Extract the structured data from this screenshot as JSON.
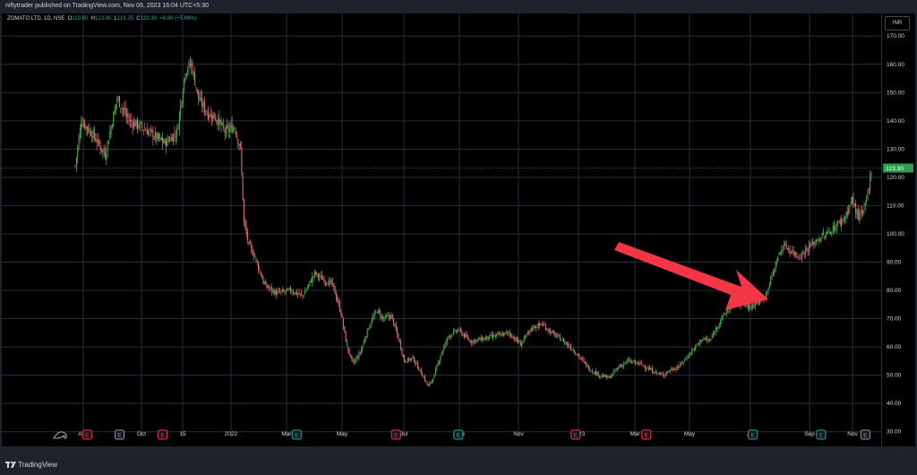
{
  "header": {
    "published_text": "niftytrader published on TradingView.com, Nov 06, 2023 16:04 UTC+5:30"
  },
  "legend": {
    "symbol": "ZOMATO LTD, 1D, NSE",
    "open_label": "O",
    "open": "119.60",
    "high_label": "H",
    "high": "123.90",
    "low_label": "L",
    "low": "118.25",
    "close_label": "C",
    "close": "123.30",
    "change": "+6.80 (+5.84%)"
  },
  "currency": "INR",
  "last_price_label": "123.30",
  "footer": {
    "brand": "TradingView"
  },
  "colors": {
    "up": "#26a69a",
    "down": "#ef5350",
    "candle_up": "#4caf50",
    "candle_down": "#e57373",
    "arrow": "#f23645",
    "last_price": "#2e9e4f"
  },
  "chart_data": {
    "type": "candlestick",
    "ylim": [
      28,
      178
    ],
    "y_ticks": [
      30,
      40,
      50,
      60,
      70,
      80,
      90,
      100,
      110,
      120,
      130,
      140,
      150,
      160,
      170
    ],
    "x_labels": [
      "Aug",
      "Oct",
      "15",
      "2022",
      "Mar",
      "May",
      "Jul",
      "Sep",
      "Nov",
      "2023",
      "Mar",
      "May",
      "Jul",
      "Sep",
      "Nov"
    ],
    "close_path": [
      [
        0,
        124
      ],
      [
        5,
        140
      ],
      [
        15,
        135
      ],
      [
        25,
        128
      ],
      [
        35,
        148
      ],
      [
        45,
        140
      ],
      [
        55,
        138
      ],
      [
        65,
        135
      ],
      [
        75,
        132
      ],
      [
        85,
        136
      ],
      [
        92,
        158
      ],
      [
        97,
        160
      ],
      [
        103,
        148
      ],
      [
        110,
        143
      ],
      [
        118,
        141
      ],
      [
        125,
        136
      ],
      [
        133,
        138
      ],
      [
        138,
        130
      ],
      [
        141,
        104
      ],
      [
        145,
        96
      ],
      [
        150,
        92
      ],
      [
        158,
        82
      ],
      [
        168,
        79
      ],
      [
        180,
        80
      ],
      [
        190,
        78
      ],
      [
        200,
        86
      ],
      [
        207,
        84
      ],
      [
        215,
        82
      ],
      [
        222,
        72
      ],
      [
        227,
        60
      ],
      [
        232,
        54
      ],
      [
        238,
        58
      ],
      [
        245,
        67
      ],
      [
        252,
        73
      ],
      [
        257,
        70
      ],
      [
        264,
        71
      ],
      [
        270,
        63
      ],
      [
        275,
        55
      ],
      [
        282,
        56
      ],
      [
        290,
        50
      ],
      [
        295,
        46
      ],
      [
        300,
        50
      ],
      [
        305,
        57
      ],
      [
        312,
        64
      ],
      [
        320,
        66
      ],
      [
        330,
        62
      ],
      [
        342,
        63
      ],
      [
        352,
        64
      ],
      [
        362,
        65
      ],
      [
        372,
        61
      ],
      [
        377,
        64
      ],
      [
        382,
        67
      ],
      [
        390,
        68
      ],
      [
        398,
        65
      ],
      [
        408,
        62
      ],
      [
        416,
        59
      ],
      [
        422,
        56
      ],
      [
        430,
        52
      ],
      [
        438,
        50
      ],
      [
        446,
        49
      ],
      [
        454,
        53
      ],
      [
        462,
        55
      ],
      [
        472,
        54
      ],
      [
        480,
        52
      ],
      [
        490,
        50
      ],
      [
        498,
        52
      ],
      [
        504,
        53
      ],
      [
        510,
        56
      ],
      [
        518,
        60
      ],
      [
        524,
        63
      ],
      [
        530,
        62
      ],
      [
        537,
        68
      ],
      [
        543,
        72
      ],
      [
        550,
        75
      ],
      [
        556,
        76
      ],
      [
        563,
        74
      ],
      [
        570,
        76
      ],
      [
        576,
        78
      ],
      [
        582,
        85
      ],
      [
        587,
        92
      ],
      [
        592,
        96
      ],
      [
        598,
        94
      ],
      [
        605,
        92
      ],
      [
        612,
        95
      ],
      [
        620,
        98
      ],
      [
        628,
        100
      ],
      [
        636,
        103
      ],
      [
        643,
        106
      ],
      [
        649,
        112
      ],
      [
        654,
        106
      ],
      [
        659,
        108
      ],
      [
        663,
        117
      ],
      [
        665,
        123.3
      ]
    ],
    "earnings_markers": [
      {
        "x": 10,
        "type": "E",
        "class": "earnings"
      },
      {
        "x": 37,
        "type": "E",
        "class": "other"
      },
      {
        "x": 73,
        "type": "E",
        "class": "earnings"
      },
      {
        "x": 185,
        "type": "E",
        "class": "dividend"
      },
      {
        "x": 268,
        "type": "E",
        "class": "earnings"
      },
      {
        "x": 320,
        "type": "E",
        "class": "dividend"
      },
      {
        "x": 418,
        "type": "E",
        "class": "earnings"
      },
      {
        "x": 477,
        "type": "E",
        "class": "earnings"
      },
      {
        "x": 566,
        "type": "E",
        "class": "dividend"
      },
      {
        "x": 623,
        "type": "E",
        "class": "dividend"
      },
      {
        "x": 660,
        "type": "E",
        "class": "other"
      }
    ]
  }
}
